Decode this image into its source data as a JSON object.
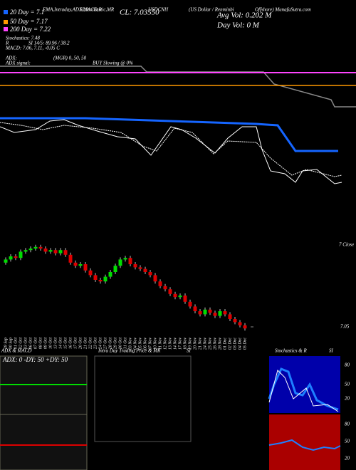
{
  "header": {
    "indicators": "EMA,Intraday,ADX,MACD,R",
    "indicators2": "SI,Stochastic,MR",
    "symbol": "USDCNH",
    "name": "(US Dollar / Renminbi",
    "site": "Offshore) MunafaSutra.com",
    "close": "CL: 7.03550",
    "avg_vol": "Avg Vol: 0.202  M",
    "day_vol": "Day Vol: 0  M"
  },
  "legend": {
    "ma20": "20 Day = 7.1",
    "ma50": "50 Day = 7.17",
    "ma200": "200 Day = 7.22",
    "stoch": "Stochastics: 7.48",
    "r": "R",
    "rsi": "SI 14/5: 89.96 / 38.2",
    "macd": "MACD: 7.06, 7.11, -0.05 C",
    "adx": "ADX:",
    "mgr": "(MGR) 0, 50, 50",
    "adx_signal": "ADX  signal:",
    "buy": "BUY Slowing @ 0%"
  },
  "right_label": "7 Close",
  "chart_data": {
    "type": "candlestick",
    "categories": [
      "29 Sep",
      "30 Sep",
      "01 Oct",
      "02 Oct",
      "03 Oct",
      "06 Oct",
      "07 Oct",
      "08 Oct",
      "09 Oct",
      "10 Oct",
      "13 Oct",
      "14 Oct",
      "15 Oct",
      "16 Oct",
      "17 Oct",
      "20 Oct",
      "21 Oct",
      "22 Oct",
      "23 Oct",
      "24 Oct",
      "27 Oct",
      "28 Oct",
      "29 Oct",
      "30 Oct",
      "31 Oct",
      "03 Nov",
      "04 Nov",
      "05 Nov",
      "06 Nov",
      "07 Nov",
      "10 Nov",
      "11 Nov",
      "12 Nov",
      "13 Nov",
      "14 Nov",
      "17 Nov",
      "18 Nov",
      "19 Nov",
      "20 Nov",
      "21 Nov",
      "24 Nov",
      "25 Nov",
      "26 Nov",
      "28 Nov",
      "01 Dec",
      "02 Dec",
      "03 Dec",
      "04 Dec",
      "05 Dec"
    ],
    "open": [
      7.46,
      7.48,
      7.5,
      7.49,
      7.53,
      7.54,
      7.55,
      7.56,
      7.55,
      7.53,
      7.54,
      7.52,
      7.54,
      7.51,
      7.46,
      7.44,
      7.45,
      7.41,
      7.38,
      7.35,
      7.34,
      7.37,
      7.4,
      7.44,
      7.48,
      7.49,
      7.45,
      7.43,
      7.42,
      7.4,
      7.38,
      7.34,
      7.31,
      7.29,
      7.26,
      7.24,
      7.25,
      7.21,
      7.18,
      7.15,
      7.13,
      7.16,
      7.14,
      7.12,
      7.15,
      7.13,
      7.1,
      7.08,
      7.06
    ],
    "close": [
      7.48,
      7.5,
      7.49,
      7.53,
      7.54,
      7.55,
      7.56,
      7.55,
      7.53,
      7.54,
      7.52,
      7.54,
      7.51,
      7.46,
      7.44,
      7.45,
      7.41,
      7.38,
      7.35,
      7.34,
      7.37,
      7.4,
      7.44,
      7.48,
      7.49,
      7.45,
      7.43,
      7.42,
      7.4,
      7.38,
      7.34,
      7.31,
      7.29,
      7.26,
      7.24,
      7.25,
      7.21,
      7.18,
      7.15,
      7.13,
      7.16,
      7.14,
      7.12,
      7.15,
      7.13,
      7.1,
      7.08,
      7.06,
      7.04
    ],
    "up_color": "#00dd00",
    "down_color": "#dd0000",
    "ylim": [
      7.0,
      7.6
    ],
    "yticks": [
      {
        "value": 7.05,
        "label": "7.05"
      }
    ]
  },
  "panels": {
    "adx_title": "ADX  & MACD",
    "adx_values": "ADX: 0  -DY: 50  +DY: 50",
    "intra_title": "Intra  Day Trading Price  & MR",
    "intra_si": "SI",
    "stoch_title": "Stochastics & R",
    "stoch_si": "SI",
    "stoch_ticks": [
      "80",
      "50",
      "20"
    ],
    "rsi_ticks": [
      "80",
      "50",
      "20"
    ]
  }
}
